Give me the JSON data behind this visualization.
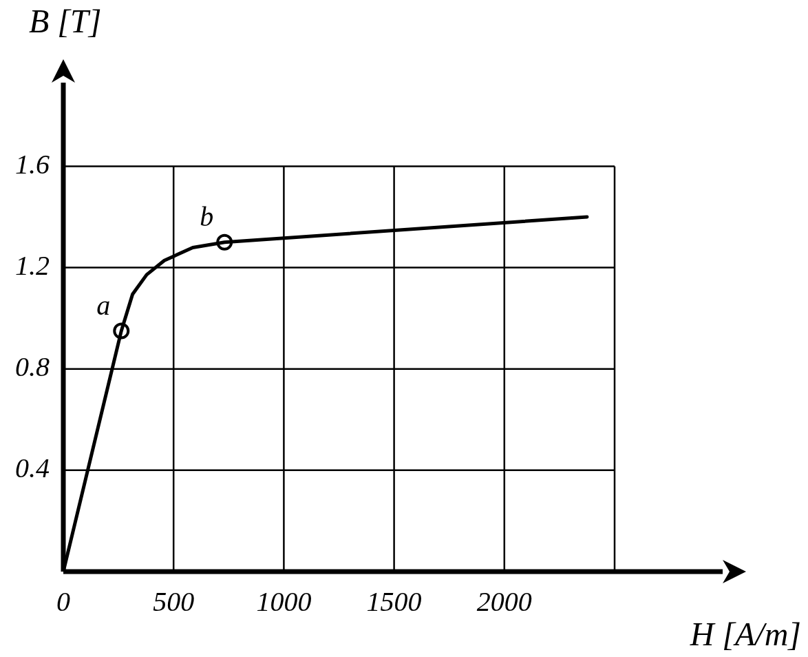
{
  "chart_data": {
    "type": "line",
    "xlabel": "H [A/m]",
    "ylabel": "B [T]",
    "xlim": [
      0,
      2990
    ],
    "ylim": [
      0,
      1.93
    ],
    "xticks": [
      0,
      500,
      1000,
      1500,
      2000,
      {
        "value": 2500,
        "label": null
      }
    ],
    "yticks": [
      {
        "value": 0,
        "label": null
      },
      0.4,
      0.8,
      1.2,
      1.6
    ],
    "grid": true,
    "legend": false,
    "series": [
      {
        "type": "line",
        "color": "#000000",
        "marker": "none",
        "x": [
          0,
          263,
          314,
          378,
          458,
          587,
          731,
          2375
        ],
        "values": [
          0,
          0.95,
          1.095,
          1.172,
          1.228,
          1.279,
          1.3,
          1.4
        ]
      },
      {
        "type": "scatter",
        "color": "#000000",
        "marker": "circle",
        "x": [
          263,
          731
        ],
        "values": [
          0.95,
          1.3
        ]
      }
    ],
    "annotations": [
      {
        "text": "a",
        "x": 263,
        "y": 0.95
      },
      {
        "text": "b",
        "x": 731,
        "y": 1.3
      }
    ]
  }
}
